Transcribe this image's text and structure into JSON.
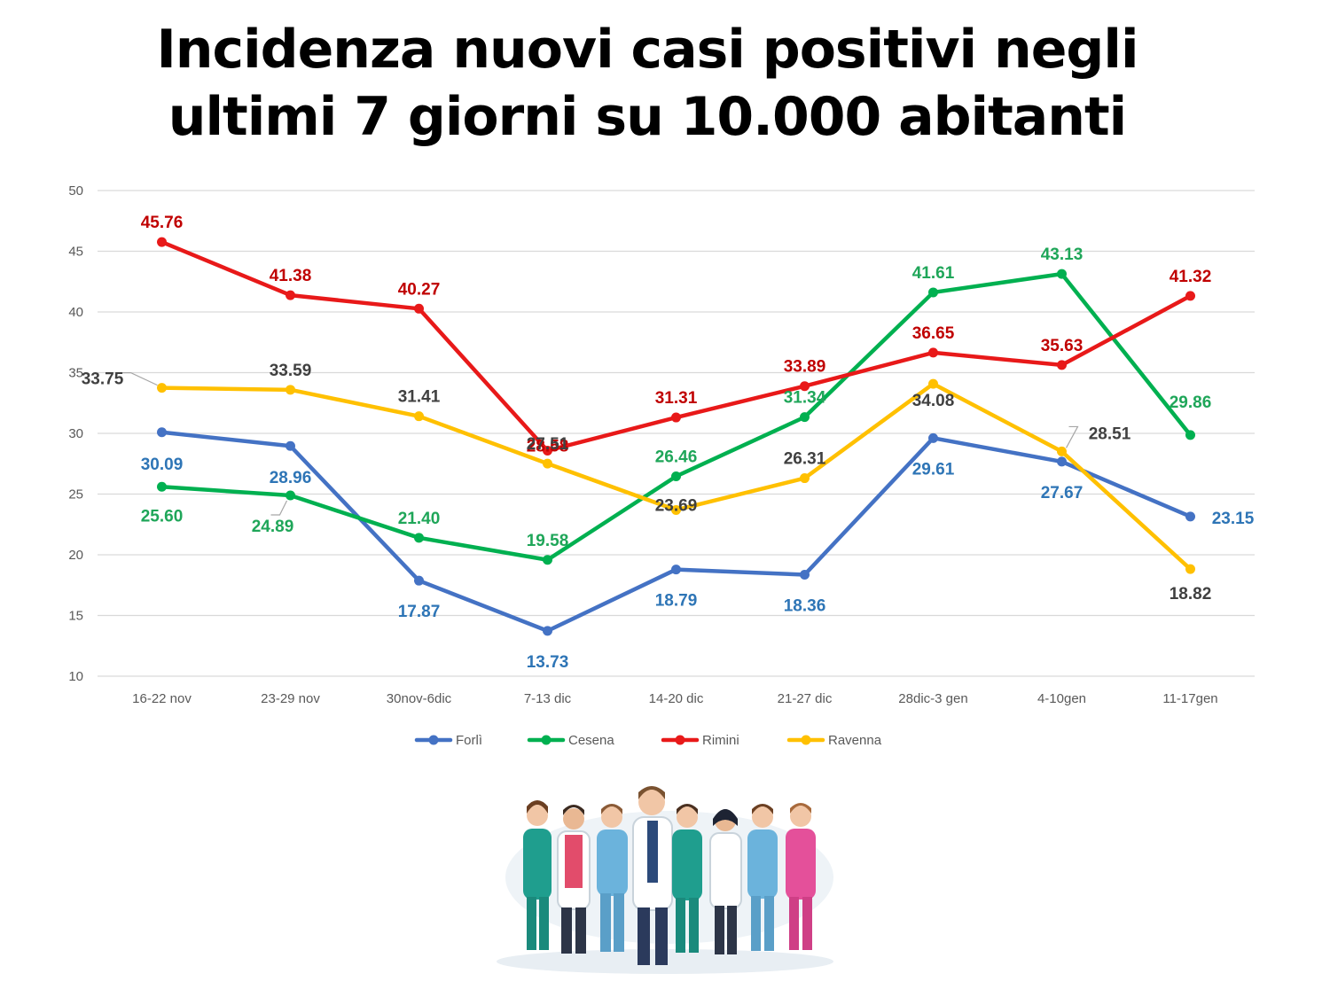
{
  "page": {
    "title_line1": "Incidenza nuovi casi positivi negli",
    "title_line2": "ultimi 7 giorni su 10.000 abitanti"
  },
  "chart_data": {
    "type": "line",
    "title": "Incidenza nuovi casi positivi negli ultimi 7 giorni su 10.000 abitanti",
    "xlabel": "",
    "ylabel": "",
    "ylim": [
      10,
      50
    ],
    "yticks": [
      10,
      15,
      20,
      25,
      30,
      35,
      40,
      45,
      50
    ],
    "grid": true,
    "legend_position": "bottom",
    "categories": [
      "16-22 nov",
      "23-29 nov",
      "30nov-6dic",
      "7-13 dic",
      "14-20 dic",
      "21-27 dic",
      "28dic-3 gen",
      "4-10gen",
      "11-17gen"
    ],
    "series": [
      {
        "name": "Forlì",
        "color": "#4472c4",
        "label_color": "#2e75b6",
        "values": [
          30.09,
          28.96,
          17.87,
          13.73,
          18.79,
          18.36,
          29.61,
          27.67,
          23.15
        ],
        "labels": [
          "30.09",
          "28.96",
          "17.87",
          "13.73",
          "18.79",
          "18.36",
          "29.61",
          "27.67",
          "23.15"
        ]
      },
      {
        "name": "Cesena",
        "color": "#00b050",
        "label_color": "#1fa659",
        "values": [
          25.6,
          24.89,
          21.4,
          19.58,
          26.46,
          31.34,
          41.61,
          43.13,
          29.86
        ],
        "labels": [
          "25.60",
          "24.89",
          "21.40",
          "19.58",
          "26.46",
          "31.34",
          "41.61",
          "43.13",
          "29.86"
        ]
      },
      {
        "name": "Rimini",
        "color": "#e81919",
        "label_color": "#c00000",
        "values": [
          45.76,
          41.38,
          40.27,
          28.58,
          31.31,
          33.89,
          36.65,
          35.63,
          41.32
        ],
        "labels": [
          "45.76",
          "41.38",
          "40.27",
          "28.58",
          "31.31",
          "33.89",
          "36.65",
          "35.63",
          "41.32"
        ]
      },
      {
        "name": "Ravenna",
        "color": "#ffc000",
        "label_color": "#404040",
        "values": [
          33.75,
          33.59,
          31.41,
          27.51,
          23.69,
          26.31,
          34.08,
          28.51,
          18.82
        ],
        "labels": [
          "33.75",
          "33.59",
          "31.41",
          "27.51",
          "23.69",
          "26.31",
          "34.08",
          "28.51",
          "18.82"
        ]
      }
    ]
  }
}
